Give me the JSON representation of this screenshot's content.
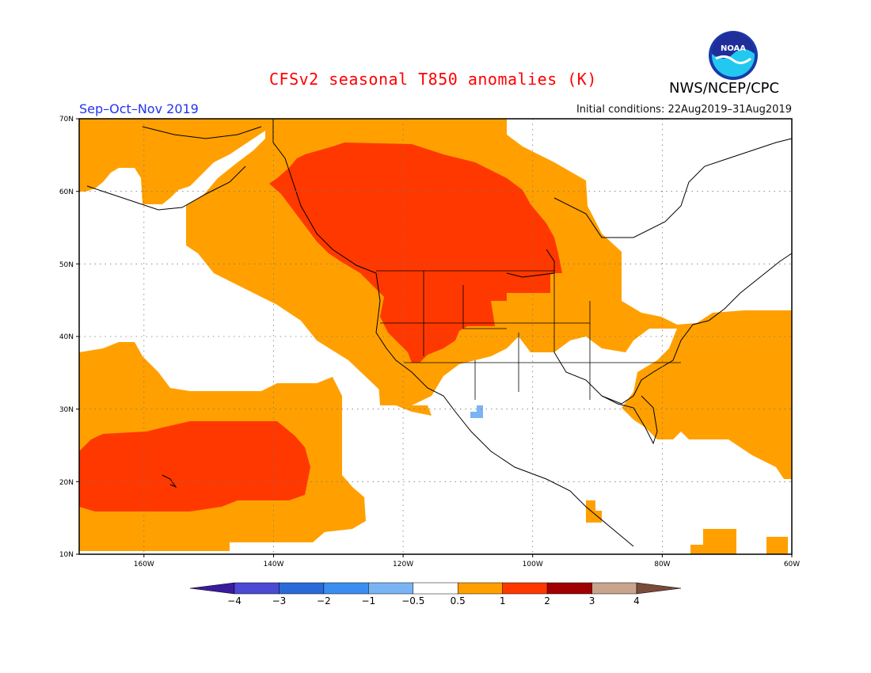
{
  "header": {
    "title": "CFSv2 seasonal T850 anomalies (K)",
    "season": "Sep–Oct–Nov 2019",
    "initial_conditions": "Initial conditions: 22Aug2019–31Aug2019",
    "org": "NWS/NCEP/CPC",
    "logo_text": "NOAA"
  },
  "map": {
    "lat_labels": [
      "70N",
      "60N",
      "50N",
      "40N",
      "30N",
      "20N",
      "10N"
    ],
    "lon_labels": [
      "160W",
      "140W",
      "120W",
      "100W",
      "80W",
      "60W"
    ],
    "lat_range": [
      10,
      70
    ],
    "lon_range": [
      -170,
      -60
    ]
  },
  "colorbar": {
    "labels": [
      "−4",
      "−3",
      "−2",
      "−1",
      "−0.5",
      "0.5",
      "1",
      "2",
      "3",
      "4"
    ],
    "colors": [
      "#3a1b9e",
      "#4a4ad4",
      "#2a6ad8",
      "#3a8ef0",
      "#7ab4f4",
      "#ffffff",
      "#ffa000",
      "#ff3800",
      "#a00000",
      "#c8a48c",
      "#7a4a3a"
    ]
  }
}
